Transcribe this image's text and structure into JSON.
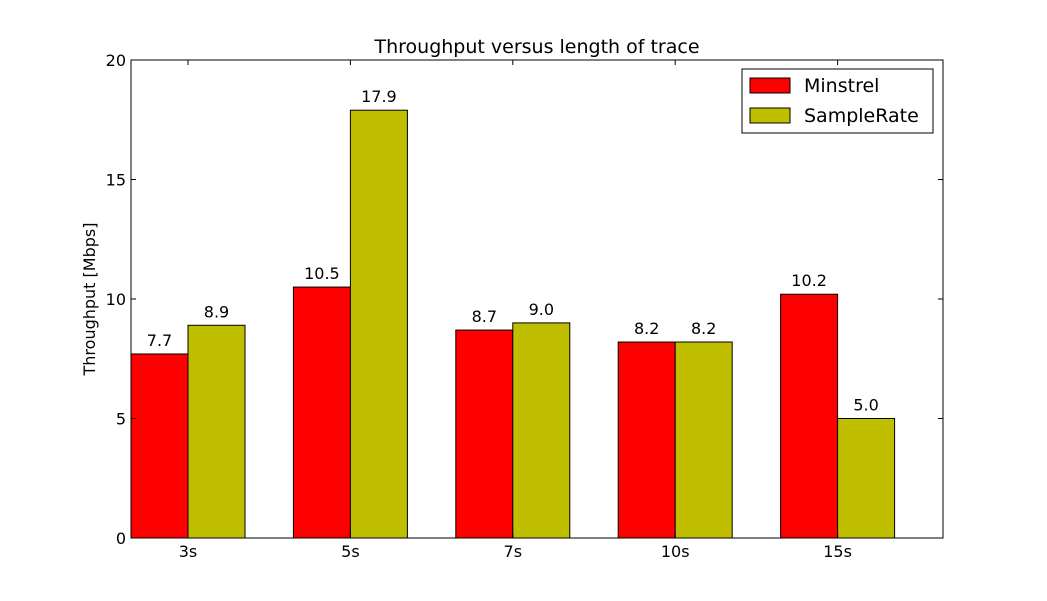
{
  "chart_data": {
    "type": "bar",
    "title": "Throughput versus length of trace",
    "xlabel": "",
    "ylabel": "Throughput [Mbps]",
    "categories": [
      "3s",
      "5s",
      "7s",
      "10s",
      "15s"
    ],
    "series": [
      {
        "name": "Minstrel",
        "color": "#ff0000",
        "values": [
          7.7,
          10.5,
          8.7,
          8.2,
          10.2
        ],
        "labels": [
          "7.7",
          "10.5",
          "8.7",
          "8.2",
          "10.2"
        ]
      },
      {
        "name": "SampleRate",
        "color": "#bfbf00",
        "values": [
          8.9,
          17.9,
          9.0,
          8.2,
          5.0
        ],
        "labels": [
          "8.9",
          "17.9",
          "9.0",
          "8.2",
          "5.0"
        ]
      }
    ],
    "ylim": [
      0,
      20
    ],
    "yticks": [
      0,
      5,
      10,
      15,
      20
    ],
    "ytick_labels": [
      "0",
      "5",
      "10",
      "15",
      "20"
    ],
    "grid": false,
    "legend_position": "top-right"
  }
}
